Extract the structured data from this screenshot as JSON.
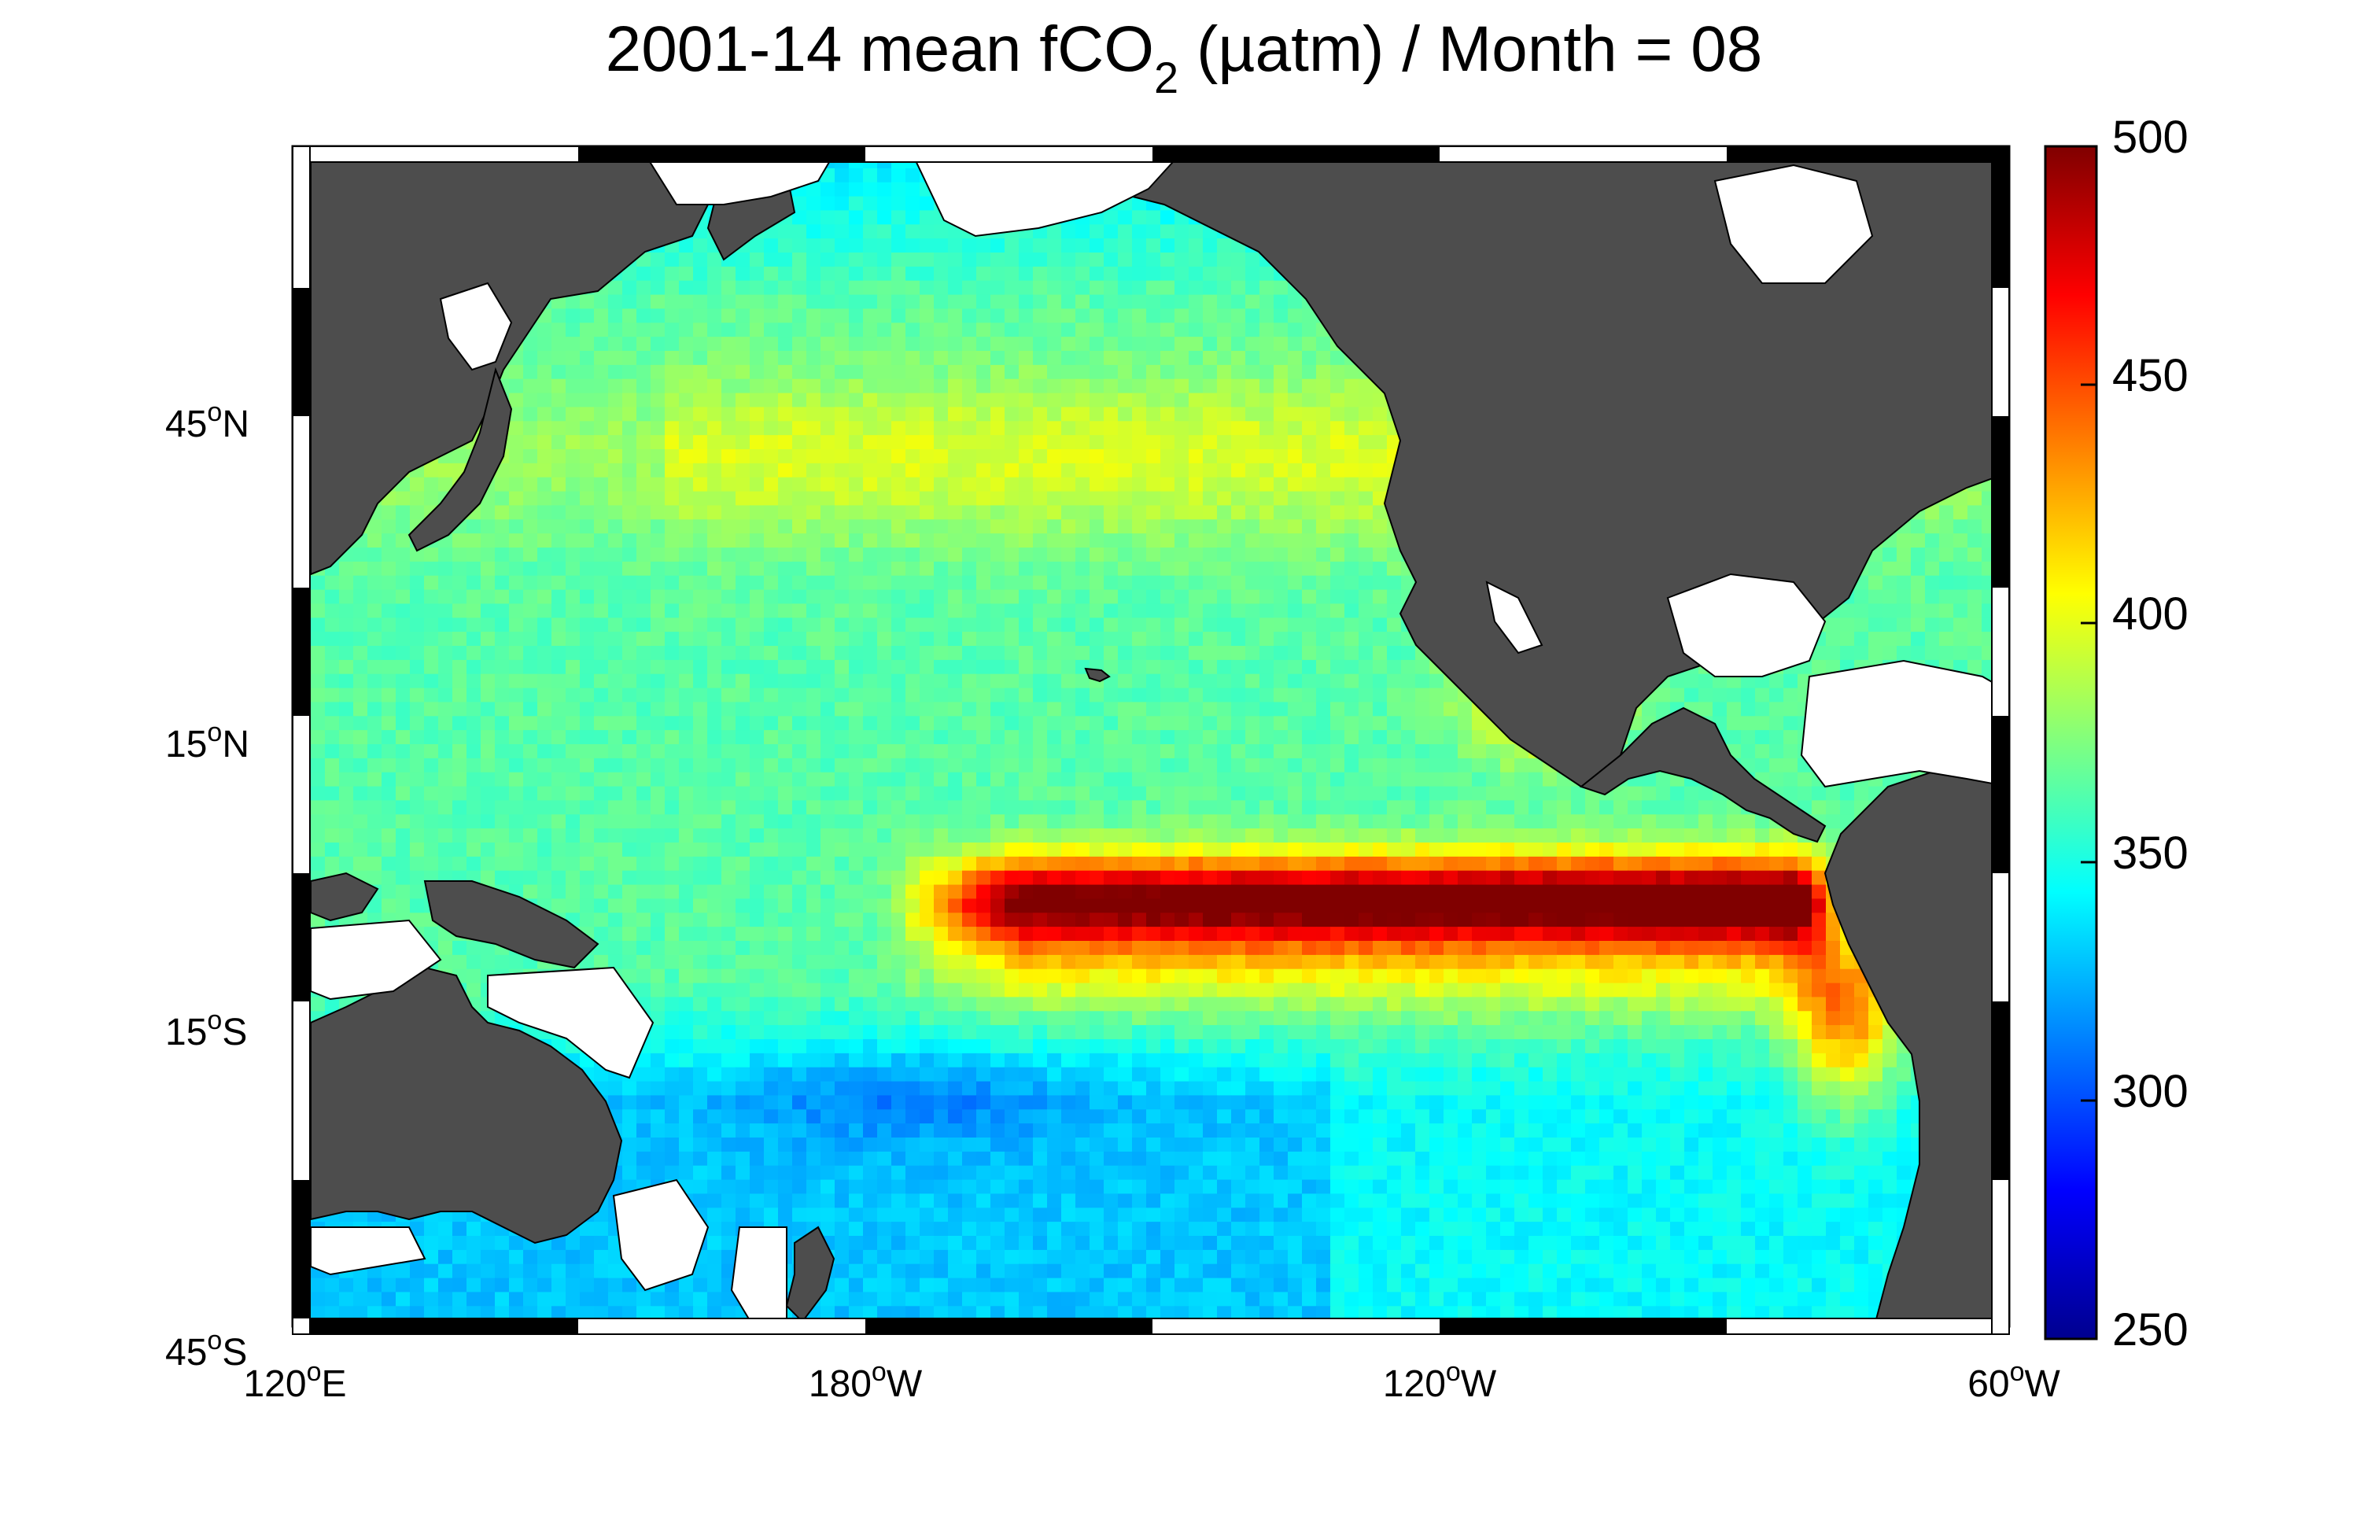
{
  "figure": {
    "title_main": "2001-14 mean fCO",
    "title_sub": "2",
    "title_rest": " (µatm) / Month = 08"
  },
  "map": {
    "lat_labels": [
      {
        "deg": "45",
        "hemi": "N",
        "lat": 45
      },
      {
        "deg": "15",
        "hemi": "N",
        "lat": 15
      },
      {
        "deg": "15",
        "hemi": "S",
        "lat": -15
      },
      {
        "deg": "45",
        "hemi": "S",
        "lat": -45
      }
    ],
    "lon_labels": [
      {
        "deg": "120",
        "hemi": "E",
        "lon": 120
      },
      {
        "deg": "180",
        "hemi": "W",
        "lon": 180
      },
      {
        "deg": "120",
        "hemi": "W",
        "lon": 240
      },
      {
        "deg": "60",
        "hemi": "W",
        "lon": 300
      }
    ],
    "extent": {
      "lon_min": 120,
      "lon_max": 300,
      "lat_min": -45,
      "lat_max": 65
    },
    "land_color": "#4d4d4d",
    "missing_color": "#ffffff"
  },
  "colorbar": {
    "ticks": [
      "500",
      "450",
      "400",
      "350",
      "300",
      "250"
    ],
    "range": [
      250,
      500
    ],
    "colormap": "jet"
  }
}
